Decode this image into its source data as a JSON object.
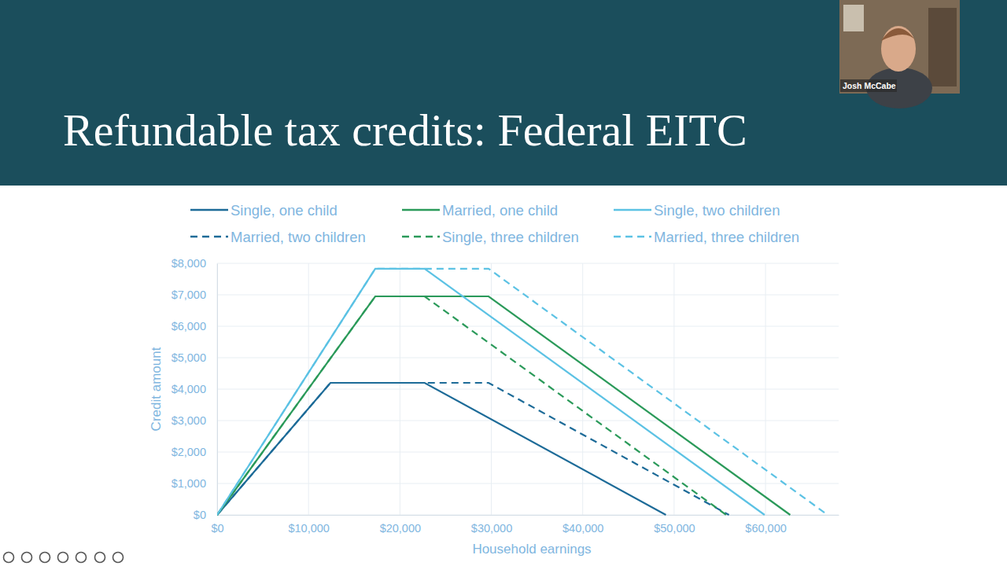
{
  "presenter": "Josh McCabe",
  "chart_data": {
    "type": "line",
    "title": "Refundable tax credits: Federal EITC",
    "x_label": "Household earnings",
    "y_label": "Credit amount",
    "xlim": [
      0,
      68000
    ],
    "ylim": [
      0,
      8000
    ],
    "xticks": [
      {
        "value": 0,
        "label": "$0"
      },
      {
        "value": 10000,
        "label": "$10,000"
      },
      {
        "value": 20000,
        "label": "$20,000"
      },
      {
        "value": 30000,
        "label": "$30,000"
      },
      {
        "value": 40000,
        "label": "$40,000"
      },
      {
        "value": 50000,
        "label": "$50,000"
      },
      {
        "value": 60000,
        "label": "$60,000"
      }
    ],
    "yticks": [
      {
        "value": 0,
        "label": "$0"
      },
      {
        "value": 1000,
        "label": "$1,000"
      },
      {
        "value": 2000,
        "label": "$2,000"
      },
      {
        "value": 3000,
        "label": "$3,000"
      },
      {
        "value": 4000,
        "label": "$4,000"
      },
      {
        "value": 5000,
        "label": "$5,000"
      },
      {
        "value": 6000,
        "label": "$6,000"
      },
      {
        "value": 7000,
        "label": "$7,000"
      },
      {
        "value": 8000,
        "label": "$8,000"
      }
    ],
    "grid": true,
    "legend": "top",
    "series": [
      {
        "name": "Single, one child",
        "color": "#1d6b98",
        "line_style": "solid",
        "x": [
          0,
          12400,
          22700,
          49100
        ],
        "values": [
          0,
          4200,
          4200,
          0
        ]
      },
      {
        "name": "Married, one child",
        "color": "#2b9a5a",
        "line_style": "solid",
        "x": [
          0,
          17300,
          29700,
          62700
        ],
        "values": [
          0,
          6950,
          6950,
          0
        ]
      },
      {
        "name": "Single, two children",
        "color": "#5cc2e4",
        "line_style": "solid",
        "x": [
          0,
          17300,
          22700,
          59900
        ],
        "values": [
          0,
          7830,
          7830,
          0
        ]
      },
      {
        "name": "Married, two children",
        "color": "#1d6b98",
        "line_style": "dashed",
        "x": [
          0,
          12400,
          29700,
          56000
        ],
        "values": [
          0,
          4200,
          4200,
          0
        ]
      },
      {
        "name": "Single, three children",
        "color": "#2b9a5a",
        "line_style": "dashed",
        "x": [
          0,
          17300,
          22700,
          55700
        ],
        "values": [
          0,
          6950,
          6950,
          0
        ]
      },
      {
        "name": "Married, three children",
        "color": "#5cc2e4",
        "line_style": "dashed",
        "x": [
          0,
          17300,
          29700,
          66800
        ],
        "values": [
          0,
          7830,
          7830,
          0
        ]
      }
    ]
  }
}
